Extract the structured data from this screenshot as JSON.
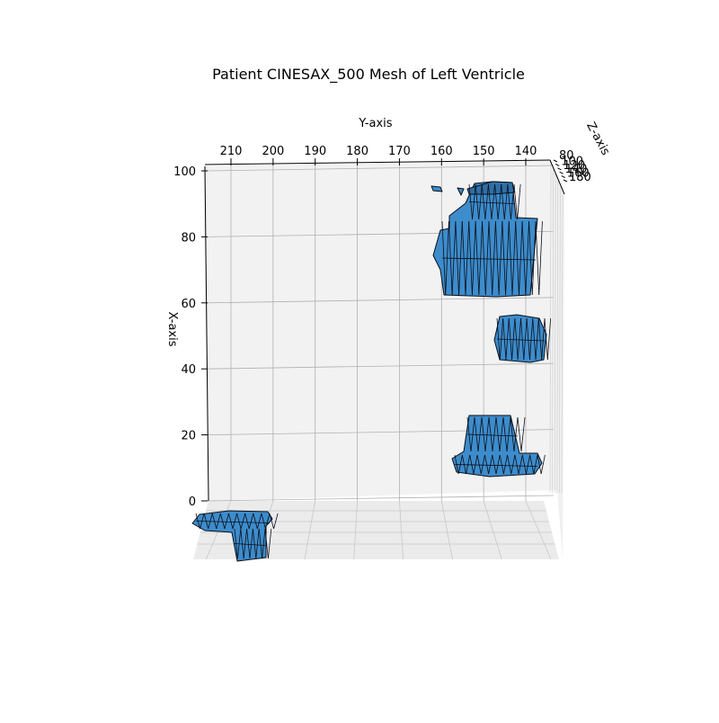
{
  "chart_data": {
    "type": "mesh3d",
    "title": "Patient CINESAX_500 Mesh of Left Ventricle",
    "xlabel": "X-axis",
    "ylabel": "Y-axis",
    "zlabel": "Z-axis",
    "x_ticks": [
      "0",
      "20",
      "40",
      "60",
      "80",
      "100"
    ],
    "y_ticks": [
      "210",
      "200",
      "190",
      "180",
      "170",
      "160",
      "150",
      "140"
    ],
    "z_ticks": [
      "80",
      "100",
      "120",
      "140",
      "160",
      "180"
    ],
    "xlim": [
      0,
      100
    ],
    "ylim": [
      216,
      132
    ],
    "grid": true,
    "view": "elevation 90, looking down the Z-axis",
    "face_color": "#3d8ccc",
    "edge_color": "#0a0f19",
    "mesh_regions": [
      {
        "name": "upper-cluster",
        "x_range": [
          62,
          96
        ],
        "y_range": [
          138,
          162
        ]
      },
      {
        "name": "middle-segment",
        "x_range": [
          42,
          57
        ],
        "y_range": [
          136,
          148
        ]
      },
      {
        "name": "lower-segment",
        "x_range": [
          8,
          27
        ],
        "y_range": [
          136,
          157
        ]
      },
      {
        "name": "bottom-left-segment",
        "x_range": [
          -18,
          -5
        ],
        "y_range": [
          196,
          216
        ]
      }
    ]
  }
}
